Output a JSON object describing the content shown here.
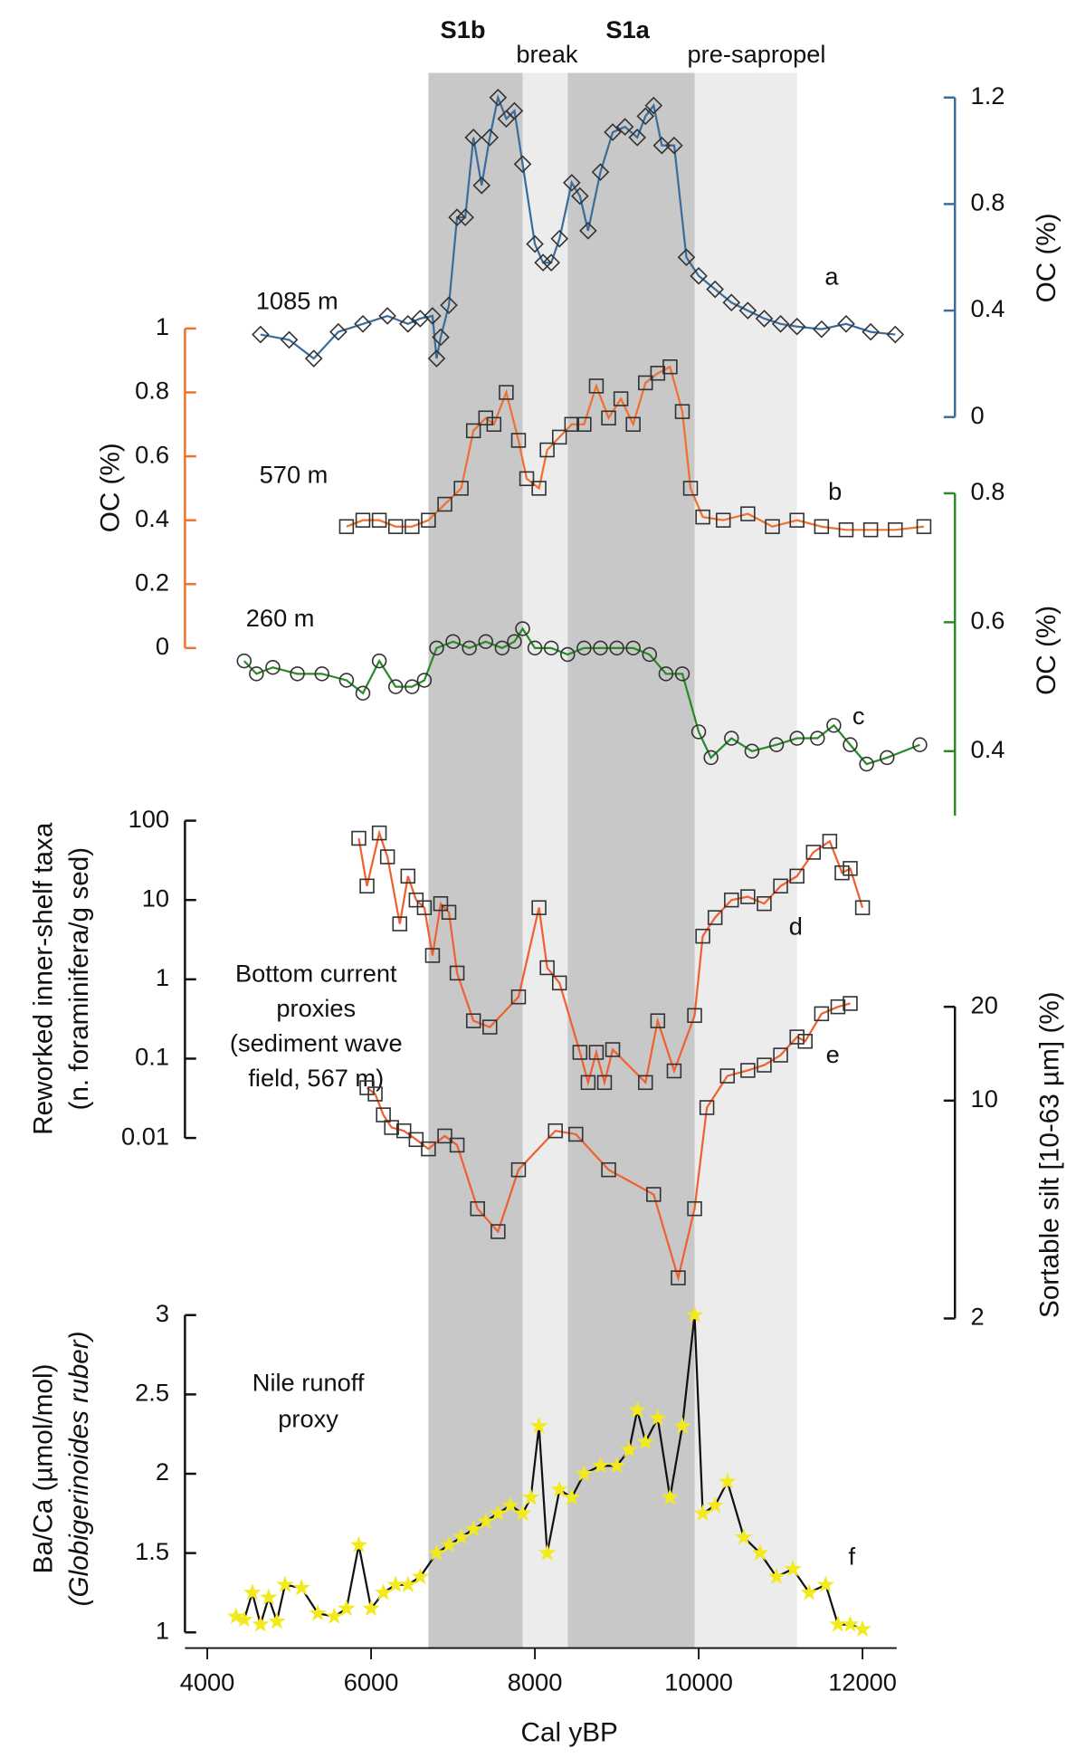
{
  "chart_data": {
    "type": "line",
    "xlabel": "Cal yBP",
    "xlim": [
      3700,
      12800
    ],
    "xticks": [
      4000,
      6000,
      8000,
      10000,
      12000
    ],
    "bands": [
      {
        "label": "S1b",
        "from": 6700,
        "to": 7850,
        "shade": "#c8c8c8",
        "bold": true
      },
      {
        "label": "break",
        "from": 7850,
        "to": 8400,
        "shade": "#ececec",
        "bold": false
      },
      {
        "label": "S1a",
        "from": 8400,
        "to": 9950,
        "shade": "#c8c8c8",
        "bold": true
      },
      {
        "label": "pre-sapropel",
        "from": 9950,
        "to": 11200,
        "shade": "#ececec",
        "bold": false
      }
    ],
    "annotations": [
      {
        "lines": [
          "Bottom current",
          "proxies",
          "(sediment wave",
          "field, 567 m)"
        ]
      },
      {
        "lines": [
          "Nile runoff",
          "proxy"
        ]
      }
    ],
    "series": [
      {
        "name": "a",
        "depth": "1085 m",
        "color": "#3a6d9c",
        "marker": "diamond",
        "marker_color": "none",
        "axis": {
          "label": [
            "OC (%)"
          ],
          "lim": [
            0,
            1.2
          ],
          "ticks": [
            0,
            0.4,
            0.8,
            1.2
          ],
          "side": "right",
          "color": "#3a6d9c",
          "log": false
        },
        "x": [
          4650,
          5000,
          5300,
          5600,
          5900,
          6200,
          6450,
          6600,
          6750,
          6800,
          6850,
          6950,
          7050,
          7150,
          7250,
          7350,
          7450,
          7550,
          7650,
          7750,
          7850,
          8000,
          8100,
          8200,
          8300,
          8450,
          8550,
          8650,
          8800,
          8950,
          9100,
          9250,
          9350,
          9450,
          9550,
          9700,
          9850,
          10000,
          10200,
          10400,
          10600,
          10800,
          11000,
          11200,
          11500,
          11800,
          12100,
          12400
        ],
        "values": [
          0.31,
          0.29,
          0.22,
          0.32,
          0.35,
          0.38,
          0.35,
          0.37,
          0.38,
          0.22,
          0.3,
          0.42,
          0.75,
          0.75,
          1.05,
          0.87,
          1.05,
          1.2,
          1.12,
          1.15,
          0.95,
          0.65,
          0.58,
          0.58,
          0.67,
          0.88,
          0.83,
          0.7,
          0.92,
          1.07,
          1.09,
          1.05,
          1.13,
          1.17,
          1.02,
          1.02,
          0.6,
          0.53,
          0.48,
          0.43,
          0.4,
          0.37,
          0.35,
          0.34,
          0.33,
          0.35,
          0.32,
          0.31
        ]
      },
      {
        "name": "b",
        "depth": "570 m",
        "color": "#f07030",
        "marker": "square",
        "marker_color": "none",
        "axis": {
          "label": [
            "OC (%)"
          ],
          "lim": [
            0,
            1
          ],
          "ticks": [
            0,
            0.2,
            0.4,
            0.6,
            0.8,
            1
          ],
          "side": "left",
          "color": "#f07030",
          "log": false
        },
        "x": [
          5700,
          5900,
          6100,
          6300,
          6500,
          6700,
          6900,
          7100,
          7250,
          7400,
          7500,
          7650,
          7800,
          7900,
          8050,
          8150,
          8300,
          8450,
          8600,
          8750,
          8900,
          9050,
          9200,
          9350,
          9500,
          9650,
          9800,
          9900,
          10050,
          10300,
          10600,
          10900,
          11200,
          11500,
          11800,
          12100,
          12400,
          12750
        ],
        "values": [
          0.38,
          0.4,
          0.4,
          0.38,
          0.38,
          0.4,
          0.45,
          0.5,
          0.68,
          0.72,
          0.7,
          0.8,
          0.65,
          0.53,
          0.5,
          0.62,
          0.66,
          0.7,
          0.7,
          0.82,
          0.72,
          0.78,
          0.7,
          0.83,
          0.86,
          0.88,
          0.74,
          0.5,
          0.41,
          0.4,
          0.42,
          0.38,
          0.4,
          0.38,
          0.37,
          0.37,
          0.37,
          0.38
        ]
      },
      {
        "name": "c",
        "depth": "260 m",
        "color": "#2a8a2a",
        "marker": "circle",
        "marker_color": "none",
        "axis": {
          "label": [
            "OC (%)"
          ],
          "lim": [
            0.3,
            0.8
          ],
          "ticks": [
            0.4,
            0.6,
            0.8
          ],
          "side": "right",
          "color": "#2a8a2a",
          "log": false
        },
        "x": [
          4450,
          4600,
          4800,
          5100,
          5400,
          5700,
          5900,
          6100,
          6300,
          6500,
          6650,
          6800,
          7000,
          7200,
          7400,
          7600,
          7750,
          7850,
          8000,
          8200,
          8400,
          8600,
          8800,
          9000,
          9200,
          9400,
          9600,
          9800,
          10000,
          10150,
          10400,
          10650,
          10950,
          11200,
          11450,
          11650,
          11850,
          12050,
          12300,
          12700
        ],
        "values": [
          0.54,
          0.52,
          0.53,
          0.52,
          0.52,
          0.51,
          0.49,
          0.54,
          0.5,
          0.5,
          0.51,
          0.56,
          0.57,
          0.56,
          0.57,
          0.56,
          0.57,
          0.59,
          0.56,
          0.56,
          0.55,
          0.56,
          0.56,
          0.56,
          0.56,
          0.55,
          0.52,
          0.52,
          0.43,
          0.39,
          0.42,
          0.4,
          0.41,
          0.42,
          0.42,
          0.44,
          0.41,
          0.38,
          0.39,
          0.41
        ]
      },
      {
        "name": "d",
        "color": "#f06030",
        "marker": "square",
        "marker_color": "none",
        "axis": {
          "label": [
            "Reworked inner-shelf taxa",
            "(n. foraminifera/g sed)"
          ],
          "lim": [
            0.01,
            100
          ],
          "ticks": [
            0.01,
            0.1,
            1,
            10,
            100
          ],
          "side": "left",
          "color": "#111111",
          "log": true
        },
        "x": [
          5850,
          5950,
          6100,
          6200,
          6350,
          6450,
          6550,
          6650,
          6750,
          6850,
          6950,
          7050,
          7250,
          7450,
          7800,
          8050,
          8150,
          8300,
          8550,
          8650,
          8750,
          8850,
          8950,
          9350,
          9500,
          9700,
          9950,
          10050,
          10200,
          10400,
          10600,
          10800,
          11000,
          11200,
          11400,
          11600,
          11750,
          11850,
          12000
        ],
        "values": [
          60,
          15,
          70,
          35,
          5,
          20,
          10,
          8,
          2,
          9,
          7,
          1.2,
          0.3,
          0.25,
          0.6,
          8,
          1.4,
          0.9,
          0.12,
          0.05,
          0.12,
          0.05,
          0.13,
          0.05,
          0.3,
          0.07,
          0.35,
          3.5,
          6,
          10,
          11,
          9,
          15,
          20,
          40,
          55,
          22,
          25,
          8
        ]
      },
      {
        "name": "e",
        "color": "#f06030",
        "marker": "square",
        "marker_color": "none",
        "axis": {
          "label": [
            "Sortable silt [10-63 µm] (%)"
          ],
          "lim": [
            2,
            20
          ],
          "ticks": [
            2,
            10,
            20
          ],
          "side": "right",
          "color": "#111111",
          "log": true
        },
        "x": [
          5950,
          6050,
          6150,
          6250,
          6400,
          6550,
          6700,
          6900,
          7050,
          7300,
          7550,
          7800,
          8250,
          8500,
          8900,
          9450,
          9750,
          9950,
          10100,
          10350,
          10600,
          10800,
          11000,
          11200,
          11300,
          11500,
          11700,
          11850
        ],
        "values": [
          11,
          10.5,
          9,
          8.2,
          8,
          7.5,
          7,
          7.7,
          7.2,
          4.5,
          3.8,
          6,
          8,
          7.8,
          6,
          5,
          2.7,
          4.5,
          9.5,
          12,
          12.5,
          13,
          14,
          16,
          15.5,
          19,
          20,
          20.5
        ]
      },
      {
        "name": "f",
        "color": "#111111",
        "marker": "star",
        "marker_color": "#f2ea1c",
        "axis": {
          "label": [
            "Ba/Ca (µmol/mol)",
            "(Globigerinoides ruber)"
          ],
          "lim": [
            1,
            3
          ],
          "ticks": [
            1,
            1.5,
            2,
            2.5,
            3
          ],
          "side": "left",
          "color": "#111111",
          "log": false
        },
        "x": [
          4350,
          4450,
          4550,
          4650,
          4750,
          4850,
          4950,
          5150,
          5350,
          5550,
          5700,
          5850,
          6000,
          6150,
          6300,
          6450,
          6600,
          6800,
          6950,
          7100,
          7250,
          7400,
          7550,
          7700,
          7850,
          7950,
          8050,
          8150,
          8300,
          8450,
          8600,
          8800,
          9000,
          9150,
          9250,
          9350,
          9500,
          9650,
          9800,
          9950,
          10050,
          10200,
          10350,
          10550,
          10750,
          10950,
          11150,
          11350,
          11550,
          11700,
          11850,
          12000
        ],
        "values": [
          1.1,
          1.08,
          1.25,
          1.05,
          1.22,
          1.07,
          1.3,
          1.28,
          1.12,
          1.1,
          1.15,
          1.55,
          1.15,
          1.25,
          1.3,
          1.3,
          1.35,
          1.5,
          1.55,
          1.6,
          1.65,
          1.7,
          1.75,
          1.8,
          1.75,
          1.85,
          2.3,
          1.5,
          1.9,
          1.85,
          2,
          2.05,
          2.05,
          2.15,
          2.4,
          2.2,
          2.35,
          1.85,
          2.3,
          3,
          1.75,
          1.8,
          1.95,
          1.6,
          1.5,
          1.35,
          1.4,
          1.25,
          1.3,
          1.05,
          1.05,
          1.02
        ]
      }
    ]
  }
}
